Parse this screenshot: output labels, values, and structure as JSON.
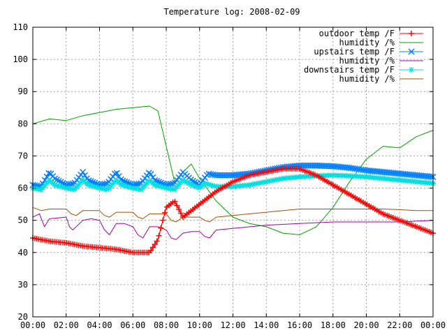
{
  "chart_data": {
    "type": "line",
    "title": "Temperature log: 2008-02-09",
    "xlabel": "",
    "ylabel": "",
    "xlim": [
      0,
      24
    ],
    "ylim": [
      20,
      110
    ],
    "xticks": [
      "00:00",
      "02:00",
      "04:00",
      "06:00",
      "08:00",
      "10:00",
      "12:00",
      "14:00",
      "16:00",
      "18:00",
      "20:00",
      "22:00",
      "00:00"
    ],
    "yticks": [
      "20",
      "30",
      "40",
      "50",
      "60",
      "70",
      "80",
      "90",
      "100",
      "110"
    ],
    "grid": true,
    "legend_position": "top-right",
    "series": [
      {
        "name": "outdoor temp /F",
        "color": "#ff0000",
        "marker": "plus",
        "x": [
          0,
          1,
          2,
          3,
          4,
          5,
          6,
          7,
          7.5,
          8,
          8.5,
          9,
          10,
          11,
          12,
          13,
          14,
          15,
          16,
          17,
          18,
          19,
          20,
          21,
          22,
          23,
          24
        ],
        "y": [
          44.5,
          43.5,
          43,
          42,
          41.5,
          41,
          40,
          40,
          44,
          54,
          56,
          51,
          55,
          59,
          62,
          64,
          65,
          66,
          66,
          64,
          61,
          58,
          55,
          52,
          50,
          48,
          46
        ]
      },
      {
        "name": "humidity /%",
        "color": "#00a000",
        "marker": "none",
        "x": [
          0,
          1,
          2,
          3,
          4,
          5,
          6,
          7,
          7.5,
          8,
          8.5,
          9,
          9.5,
          10,
          11,
          12,
          13,
          14,
          15,
          16,
          17,
          18,
          19,
          20,
          21,
          22,
          23,
          24
        ],
        "y": [
          80,
          81.5,
          81,
          82.5,
          83.5,
          84.5,
          85,
          85.5,
          84,
          73,
          62,
          65,
          67.5,
          63,
          56,
          51,
          49,
          48,
          46,
          45.5,
          48,
          54,
          62,
          69,
          73,
          72.5,
          76,
          78
        ]
      },
      {
        "name": "upstairs temp /F",
        "color": "#0080ff",
        "marker": "x",
        "x": [
          0,
          0.5,
          1,
          1.3,
          2,
          2.5,
          3,
          3.3,
          4,
          4.5,
          5,
          5.3,
          6,
          6.5,
          7,
          7.3,
          8,
          8.5,
          9,
          9.5,
          10,
          10.5,
          11,
          12,
          13,
          14,
          15,
          16,
          17,
          18,
          19,
          20,
          21,
          22,
          23,
          24
        ],
        "y": [
          61,
          60.5,
          65,
          63,
          61,
          61.5,
          65,
          62.5,
          61,
          61.5,
          65,
          62.5,
          61,
          61.5,
          65,
          62.5,
          61,
          61.5,
          65,
          62.5,
          61,
          64.5,
          64,
          64,
          64.5,
          65.5,
          66.5,
          67,
          67,
          66.8,
          66.3,
          65.5,
          65,
          64.5,
          64,
          63.5
        ]
      },
      {
        "name": "humidity /%",
        "color": "#a000a0",
        "marker": "none",
        "x": [
          0,
          0.4,
          0.7,
          1,
          2,
          2.2,
          2.4,
          3,
          3.5,
          4,
          4.3,
          4.6,
          5,
          5.5,
          6,
          6.3,
          6.6,
          7,
          7.5,
          8,
          8.3,
          8.6,
          9,
          9.5,
          10,
          10.3,
          10.6,
          11,
          12,
          14,
          16,
          18,
          20,
          22,
          24
        ],
        "y": [
          51,
          52,
          48,
          50.5,
          51,
          48,
          47,
          50,
          50.5,
          50,
          47,
          45.5,
          49,
          49,
          48,
          45.5,
          44.5,
          48,
          48,
          47,
          44.5,
          44,
          46,
          46.5,
          46.5,
          45,
          44.5,
          47,
          47.5,
          48.5,
          49,
          49.5,
          49.5,
          49.5,
          50
        ]
      },
      {
        "name": "downstairs temp /F",
        "color": "#00e0e0",
        "marker": "star",
        "x": [
          0,
          0.5,
          1,
          1.3,
          2,
          2.5,
          3,
          3.3,
          4,
          4.5,
          5,
          5.3,
          6,
          6.5,
          7,
          7.3,
          8,
          8.5,
          9,
          9.5,
          10,
          10.3,
          11,
          12,
          13,
          14,
          15,
          16,
          17,
          18,
          19,
          20,
          21,
          22,
          23,
          24
        ],
        "y": [
          60,
          59.5,
          62.5,
          61,
          60,
          59.5,
          62.5,
          61,
          60,
          59.5,
          62.5,
          61,
          60,
          59.5,
          62.5,
          61,
          60,
          59.5,
          62.5,
          61,
          60,
          61.5,
          60.5,
          60.5,
          61,
          62,
          63,
          63.5,
          63.8,
          64,
          63.8,
          63.5,
          63,
          62.5,
          62,
          61.5
        ]
      },
      {
        "name": "humidity /%",
        "color": "#a05000",
        "marker": "none",
        "x": [
          0,
          0.5,
          1,
          2,
          2.3,
          2.6,
          3,
          4,
          4.3,
          4.6,
          5,
          6,
          6.3,
          6.6,
          7,
          8,
          8.3,
          8.6,
          9,
          10,
          10.3,
          10.6,
          11,
          12,
          13,
          14,
          15,
          16,
          17,
          18,
          19,
          20,
          21,
          22,
          23,
          24
        ],
        "y": [
          54,
          53,
          53.5,
          53.5,
          52,
          51.5,
          53,
          53,
          51.5,
          51,
          52.5,
          52.5,
          51,
          50.5,
          52,
          52,
          50,
          49.5,
          51,
          51,
          50,
          49.5,
          51,
          51.5,
          52,
          52.5,
          53,
          53.5,
          53.5,
          53.5,
          53.5,
          53.5,
          53.5,
          53.3,
          53,
          53
        ]
      }
    ]
  }
}
